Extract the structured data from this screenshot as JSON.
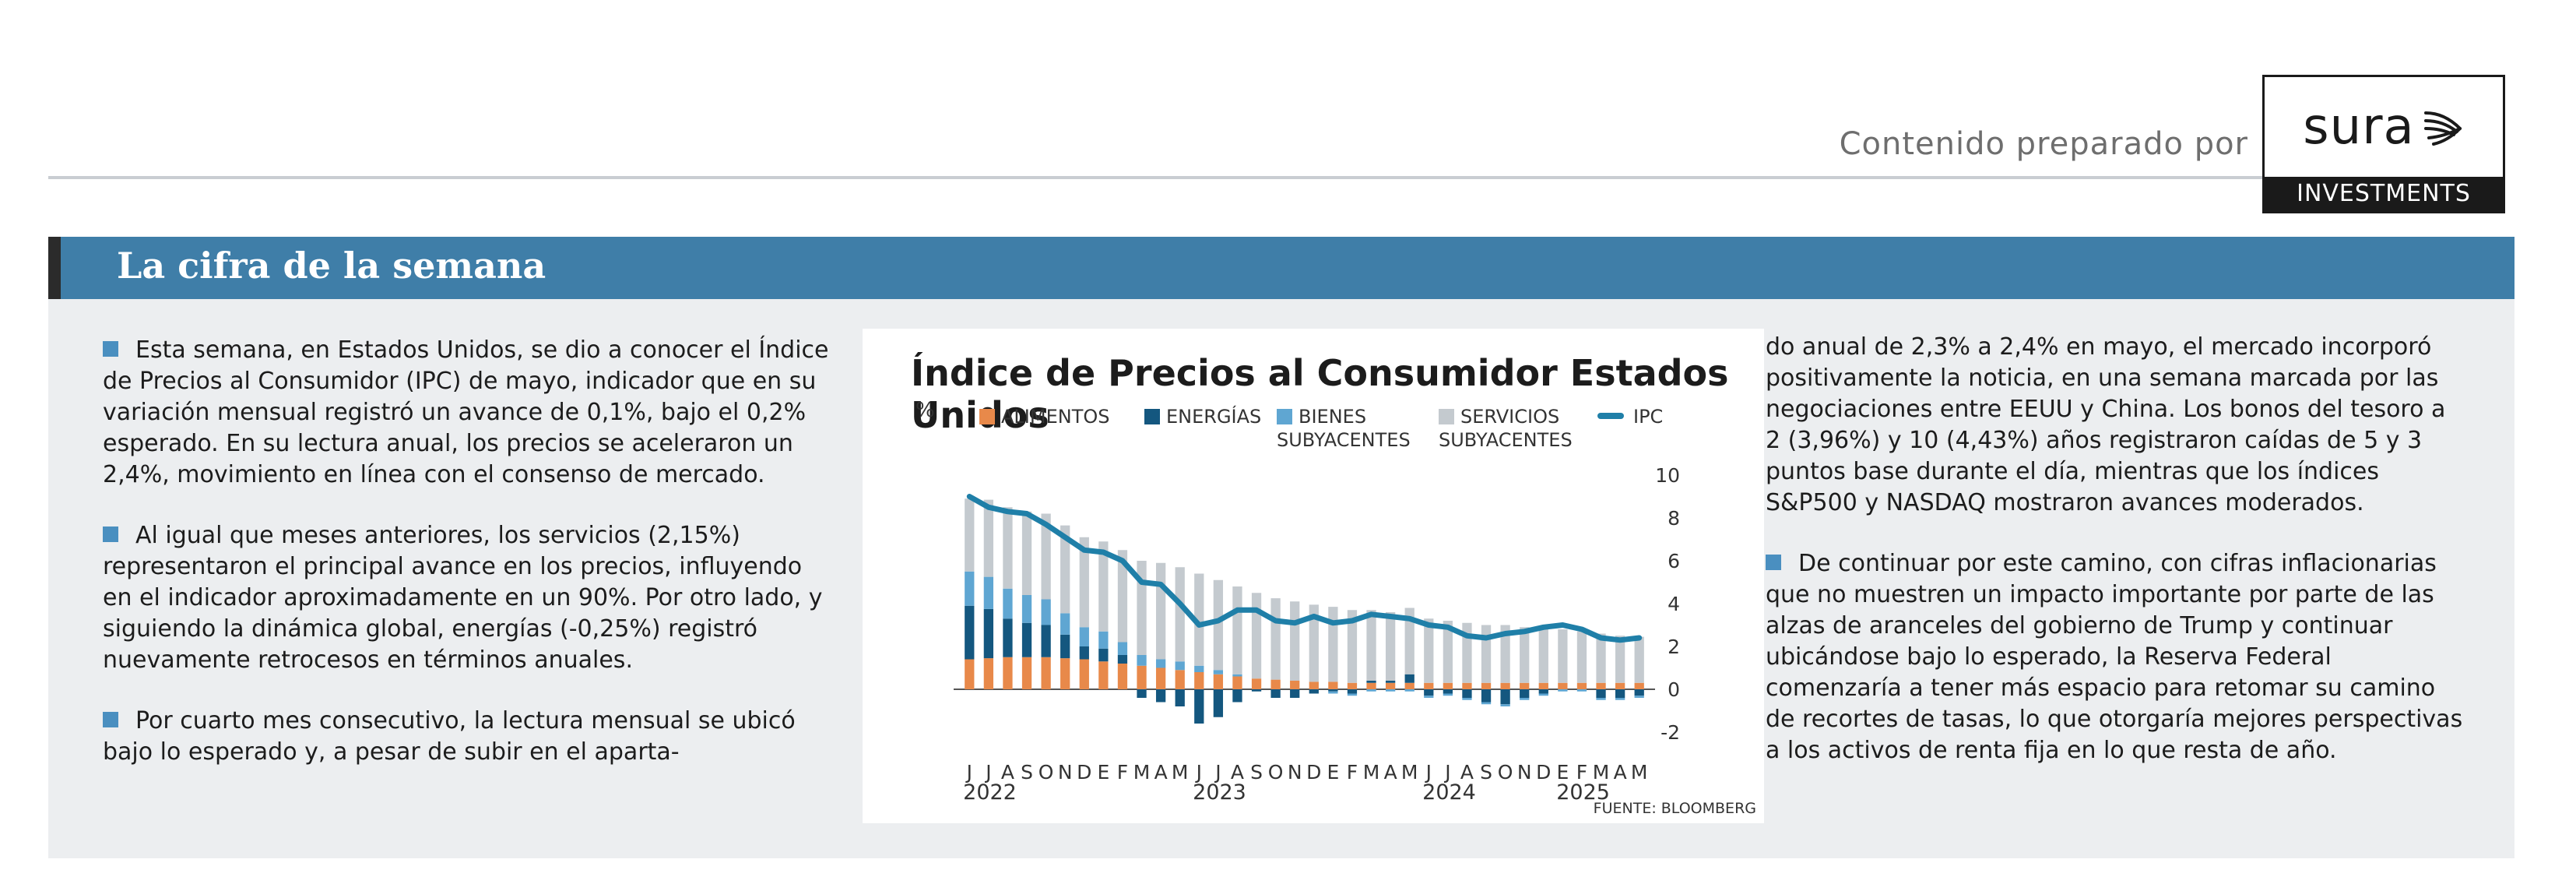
{
  "header": {
    "prepared_by": "Contenido preparado por",
    "logo_word": "sura",
    "logo_sub": "INVESTMENTS"
  },
  "section": {
    "title": "La cifra de la semana"
  },
  "left_column": {
    "paragraphs": [
      "Esta semana, en Estados Unidos, se dio a conocer el Índice de Precios al Consumidor (IPC) de mayo, indicador que en su variación mensual registró un avance de 0,1%, bajo el 0,2% esperado. En su lectura anual, los precios se aceleraron un 2,4%, movimiento en línea con el consenso de mercado.",
      "Al igual que meses anteriores, los servicios (2,15%) representaron el principal avance en los precios, influyendo en el indicador aproximadamente en un 90%. Por otro lado, y siguiendo la dinámica global, energías (-0,25%) registró nuevamente retrocesos en términos anuales.",
      "Por cuarto mes consecutivo, la lectura mensual se ubicó bajo lo esperado y, a pesar de subir en el aparta-"
    ]
  },
  "right_column": {
    "paragraphs": [
      "do anual de 2,3% a 2,4% en mayo, el mercado incorporó positivamente la noticia, en una semana marcada por las negociaciones entre EEUU y China. Los bonos del tesoro a 2 (3,96%) y 10 (4,43%) años registraron caídas de 5 y 3 puntos base durante el día, mientras que los índices S&P500 y NASDAQ mostraron avances moderados.",
      "De continuar por este camino, con cifras inflacionarias que no muestren un impacto importante por parte de las alzas de aranceles del gobierno de Trump y continuar ubicándose bajo lo esperado, la Reserva Federal comenzaría a tener más espacio para retomar su camino de recortes de tasas, lo que otorgaría mejores perspectivas a los activos de renta fija en lo que resta de año."
    ]
  },
  "colors": {
    "accent": "#3f7ea8",
    "alimentos": "#e8894a",
    "energias": "#14577f",
    "bienes": "#5fa6d2",
    "servicios": "#c4cacf",
    "ipc": "#1f7fa8"
  },
  "chart_data": {
    "type": "bar",
    "title": "Índice de Precios al Consumidor Estados Unidos",
    "unit": "%",
    "source": "FUENTE: BLOOMBERG",
    "legend": {
      "alimentos": "ALIMENTOS",
      "energias": "ENERGÍAS",
      "bienes_1": "BIENES",
      "bienes_2": "SUBYACENTES",
      "servicios_1": "SERVICIOS",
      "servicios_2": "SUBYACENTES",
      "ipc": "IPC"
    },
    "ylim": [
      -2,
      10
    ],
    "yticks": [
      -2,
      0,
      2,
      4,
      6,
      8,
      10
    ],
    "x_labels": [
      "J",
      "J",
      "A",
      "S",
      "O",
      "N",
      "D",
      "E",
      "F",
      "M",
      "A",
      "M",
      "J",
      "J",
      "A",
      "S",
      "O",
      "N",
      "D",
      "E",
      "F",
      "M",
      "A",
      "M",
      "J",
      "J",
      "A",
      "S",
      "O",
      "N",
      "D",
      "E",
      "F",
      "M",
      "A",
      "M"
    ],
    "year_labels": [
      {
        "label": "2022",
        "index": 0
      },
      {
        "label": "2023",
        "index": 12
      },
      {
        "label": "2024",
        "index": 24
      },
      {
        "label": "2025",
        "index": 31
      }
    ],
    "series": [
      {
        "name": "ALIMENTOS",
        "values": [
          1.4,
          1.45,
          1.5,
          1.5,
          1.5,
          1.45,
          1.4,
          1.3,
          1.2,
          1.1,
          1.0,
          0.9,
          0.8,
          0.7,
          0.6,
          0.5,
          0.45,
          0.4,
          0.35,
          0.35,
          0.3,
          0.3,
          0.3,
          0.3,
          0.3,
          0.3,
          0.3,
          0.3,
          0.3,
          0.3,
          0.3,
          0.3,
          0.3,
          0.3,
          0.3,
          0.3
        ]
      },
      {
        "name": "ENERGÍAS",
        "values": [
          2.5,
          2.3,
          1.8,
          1.6,
          1.5,
          1.1,
          0.6,
          0.6,
          0.4,
          -0.4,
          -0.6,
          -0.8,
          -1.6,
          -1.3,
          -0.6,
          -0.1,
          -0.4,
          -0.4,
          -0.2,
          -0.1,
          -0.2,
          0.1,
          0.1,
          0.4,
          -0.3,
          -0.2,
          -0.4,
          -0.6,
          -0.7,
          -0.4,
          -0.2,
          0.0,
          0.0,
          -0.4,
          -0.4,
          -0.3
        ]
      },
      {
        "name": "BIENES SUBYACENTES",
        "values": [
          1.6,
          1.5,
          1.4,
          1.3,
          1.2,
          1.0,
          0.9,
          0.8,
          0.6,
          0.5,
          0.4,
          0.4,
          0.3,
          0.2,
          0.1,
          0.0,
          0.0,
          0.0,
          0.0,
          -0.1,
          -0.1,
          -0.1,
          -0.1,
          -0.1,
          -0.1,
          -0.1,
          -0.1,
          -0.1,
          -0.1,
          -0.1,
          -0.1,
          -0.1,
          -0.1,
          -0.1,
          -0.1,
          -0.1
        ]
      },
      {
        "name": "SERVICIOS SUBYACENTES",
        "values": [
          3.4,
          3.6,
          3.8,
          3.9,
          4.0,
          4.1,
          4.2,
          4.2,
          4.3,
          4.4,
          4.5,
          4.4,
          4.3,
          4.2,
          4.1,
          4.0,
          3.8,
          3.7,
          3.6,
          3.5,
          3.4,
          3.3,
          3.2,
          3.1,
          3.0,
          2.9,
          2.8,
          2.7,
          2.7,
          2.6,
          2.6,
          2.5,
          2.4,
          2.3,
          2.2,
          2.15
        ]
      },
      {
        "name": "IPC",
        "type": "line",
        "values": [
          9.0,
          8.5,
          8.3,
          8.2,
          7.7,
          7.1,
          6.5,
          6.4,
          6.0,
          5.0,
          4.9,
          4.0,
          3.0,
          3.2,
          3.7,
          3.7,
          3.2,
          3.1,
          3.4,
          3.1,
          3.2,
          3.5,
          3.4,
          3.3,
          3.0,
          2.9,
          2.5,
          2.4,
          2.6,
          2.7,
          2.9,
          3.0,
          2.8,
          2.4,
          2.3,
          2.4
        ]
      }
    ]
  }
}
